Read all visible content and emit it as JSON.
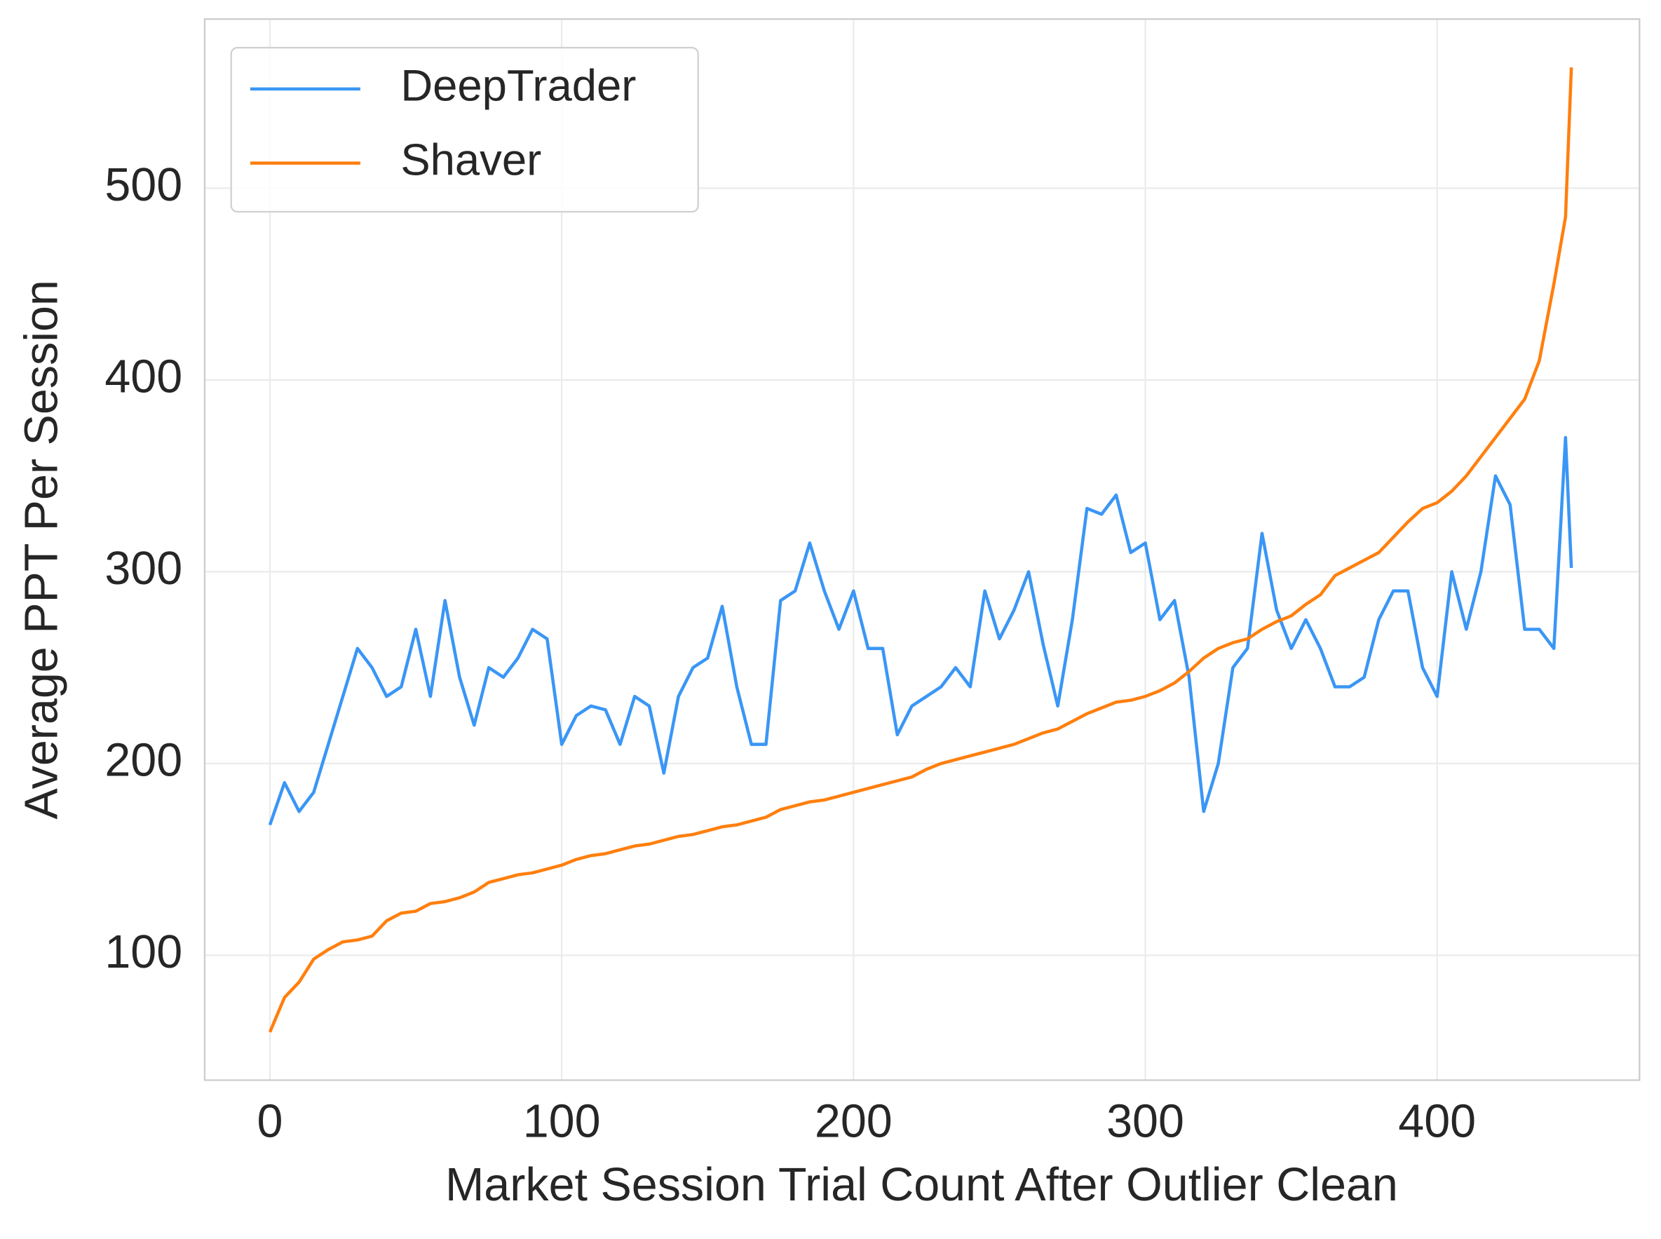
{
  "chart_data": {
    "type": "line",
    "xlabel": "Market Session Trial Count After Outlier Clean",
    "ylabel": "Average PPT Per Session",
    "x": [
      0,
      5,
      10,
      15,
      20,
      25,
      30,
      35,
      40,
      45,
      50,
      55,
      60,
      65,
      70,
      75,
      80,
      85,
      90,
      95,
      100,
      105,
      110,
      115,
      120,
      125,
      130,
      135,
      140,
      145,
      150,
      155,
      160,
      165,
      170,
      175,
      180,
      185,
      190,
      195,
      200,
      205,
      210,
      215,
      220,
      225,
      230,
      235,
      240,
      245,
      250,
      255,
      260,
      265,
      270,
      275,
      280,
      285,
      290,
      295,
      300,
      305,
      310,
      315,
      320,
      325,
      330,
      335,
      340,
      345,
      350,
      355,
      360,
      365,
      370,
      375,
      380,
      385,
      390,
      395,
      400,
      405,
      410,
      415,
      420,
      425,
      430,
      435,
      440,
      444,
      446
    ],
    "series": [
      {
        "name": "DeepTrader",
        "color": "#3a96f5",
        "values": [
          168,
          190,
          175,
          185,
          210,
          235,
          260,
          250,
          235,
          240,
          270,
          235,
          285,
          245,
          220,
          250,
          245,
          255,
          270,
          265,
          210,
          225,
          230,
          228,
          210,
          235,
          230,
          195,
          235,
          250,
          255,
          282,
          240,
          210,
          210,
          285,
          290,
          315,
          290,
          270,
          290,
          260,
          260,
          215,
          230,
          235,
          240,
          250,
          240,
          290,
          265,
          280,
          300,
          262,
          230,
          275,
          333,
          330,
          340,
          310,
          315,
          275,
          285,
          245,
          175,
          200,
          250,
          260,
          320,
          280,
          260,
          275,
          260,
          240,
          240,
          245,
          275,
          290,
          290,
          250,
          235,
          300,
          270,
          300,
          350,
          335,
          270,
          270,
          260,
          370,
          302
        ]
      },
      {
        "name": "Shaver",
        "color": "#ff7f0e",
        "values": [
          60,
          78,
          86,
          98,
          103,
          107,
          108,
          110,
          118,
          122,
          123,
          127,
          128,
          130,
          133,
          138,
          140,
          142,
          143,
          145,
          147,
          150,
          152,
          153,
          155,
          157,
          158,
          160,
          162,
          163,
          165,
          167,
          168,
          170,
          172,
          176,
          178,
          180,
          181,
          183,
          185,
          187,
          189,
          191,
          193,
          197,
          200,
          202,
          204,
          206,
          208,
          210,
          213,
          216,
          218,
          222,
          226,
          229,
          232,
          233,
          235,
          238,
          242,
          248,
          255,
          260,
          263,
          265,
          270,
          274,
          277,
          283,
          288,
          298,
          302,
          306,
          310,
          318,
          326,
          333,
          336,
          342,
          350,
          360,
          370,
          380,
          390,
          410,
          450,
          485,
          563
        ]
      }
    ],
    "xlim": [
      -22.35,
      469.35
    ],
    "xticks": [
      0,
      100,
      200,
      300,
      400
    ],
    "ylim": [
      34.9,
      588.2
    ],
    "yticks": [
      100,
      200,
      300,
      400,
      500
    ],
    "grid": true,
    "legend": "upper left"
  }
}
